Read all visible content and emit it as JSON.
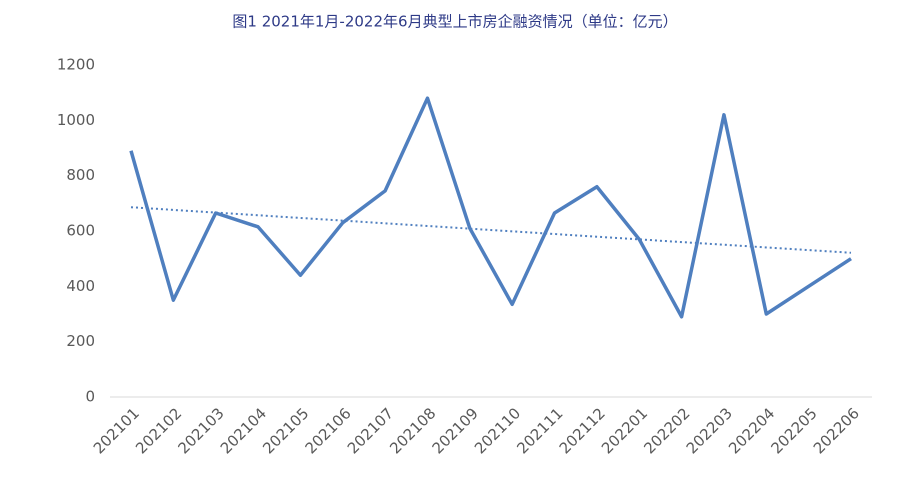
{
  "chart_data": {
    "type": "line",
    "title": "图1 2021年1月-2022年6月典型上市房企融资情况（单位：亿元）",
    "categories": [
      "202101",
      "202102",
      "202103",
      "202104",
      "202105",
      "202106",
      "202107",
      "202108",
      "202109",
      "202110",
      "202111",
      "202112",
      "202201",
      "202202",
      "202203",
      "202204",
      "202205",
      "202206"
    ],
    "series": [
      {
        "color": "#4f7fbf",
        "values": [
          890,
          350,
          665,
          615,
          440,
          630,
          745,
          1080,
          610,
          335,
          665,
          760,
          570,
          290,
          1020,
          300,
          400,
          500
        ]
      }
    ],
    "trendline": true,
    "ylim": [
      0,
      1200
    ],
    "yticks": [
      0,
      200,
      400,
      600,
      800,
      1000,
      1200
    ]
  }
}
